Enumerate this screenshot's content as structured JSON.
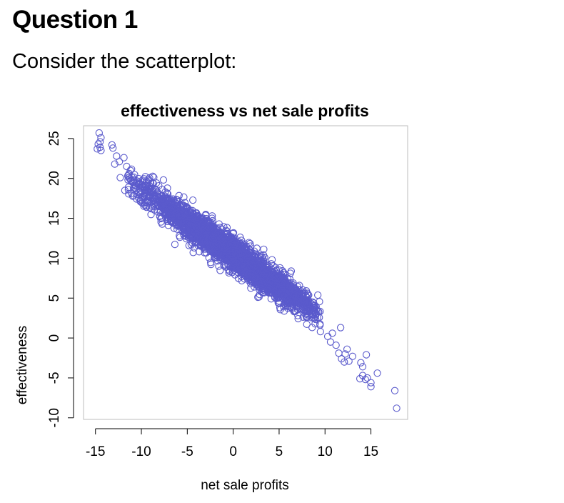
{
  "question": {
    "title": "Question 1",
    "prompt": "Consider the scatterplot:"
  },
  "colors": {
    "point": "#5a5acc",
    "frame": "#bdbdbd",
    "axis": "#000000"
  },
  "chart_data": {
    "type": "scatter",
    "title": "effectiveness vs net sale profits",
    "xlabel": "net sale profits",
    "ylabel": "effectiveness",
    "xlim": [
      -16.3,
      19.0
    ],
    "ylim": [
      -10.2,
      26.6
    ],
    "xticks": [
      -15,
      -10,
      -5,
      0,
      5,
      10,
      15
    ],
    "yticks": [
      -10,
      -5,
      0,
      5,
      10,
      15,
      20,
      25
    ],
    "grid": false,
    "marker": "open-circle",
    "approx_n_points": 3000,
    "trend": {
      "slope": -0.81,
      "intercept": 10.5,
      "residual_sd": 1.0
    },
    "x_distribution": {
      "mean": 0.0,
      "sd": 5.0
    },
    "points": [
      [
        -14.6,
        25.7
      ],
      [
        -14.4,
        25.1
      ],
      [
        -14.5,
        24.6
      ],
      [
        -14.7,
        24.3
      ],
      [
        -14.5,
        23.9
      ],
      [
        -14.8,
        23.7
      ],
      [
        -14.4,
        23.5
      ],
      [
        -13.2,
        24.2
      ],
      [
        -13.1,
        23.8
      ],
      [
        -12.7,
        22.8
      ],
      [
        -12.4,
        22.1
      ],
      [
        -12.9,
        21.8
      ],
      [
        -11.9,
        22.6
      ],
      [
        -11.6,
        21.5
      ],
      [
        -12.3,
        20.1
      ],
      [
        -11.8,
        18.5
      ],
      [
        -11.2,
        21.0
      ],
      [
        9.5,
        0.8
      ],
      [
        10.3,
        0.2
      ],
      [
        10.8,
        0.6
      ],
      [
        10.6,
        -0.5
      ],
      [
        11.2,
        -0.9
      ],
      [
        11.5,
        -1.9
      ],
      [
        11.7,
        1.3
      ],
      [
        11.8,
        -2.6
      ],
      [
        12.2,
        -2.0
      ],
      [
        12.1,
        -3.0
      ],
      [
        12.4,
        -1.4
      ],
      [
        13.0,
        -2.3
      ],
      [
        12.6,
        -2.9
      ],
      [
        13.9,
        -3.1
      ],
      [
        14.1,
        -3.6
      ],
      [
        14.5,
        -2.1
      ],
      [
        14.1,
        -4.7
      ],
      [
        14.6,
        -5.0
      ],
      [
        13.8,
        -5.1
      ],
      [
        14.4,
        -5.2
      ],
      [
        15.0,
        -5.6
      ],
      [
        15.0,
        -6.1
      ],
      [
        15.7,
        -4.4
      ],
      [
        17.6,
        -6.6
      ],
      [
        17.8,
        -8.8
      ]
    ]
  }
}
